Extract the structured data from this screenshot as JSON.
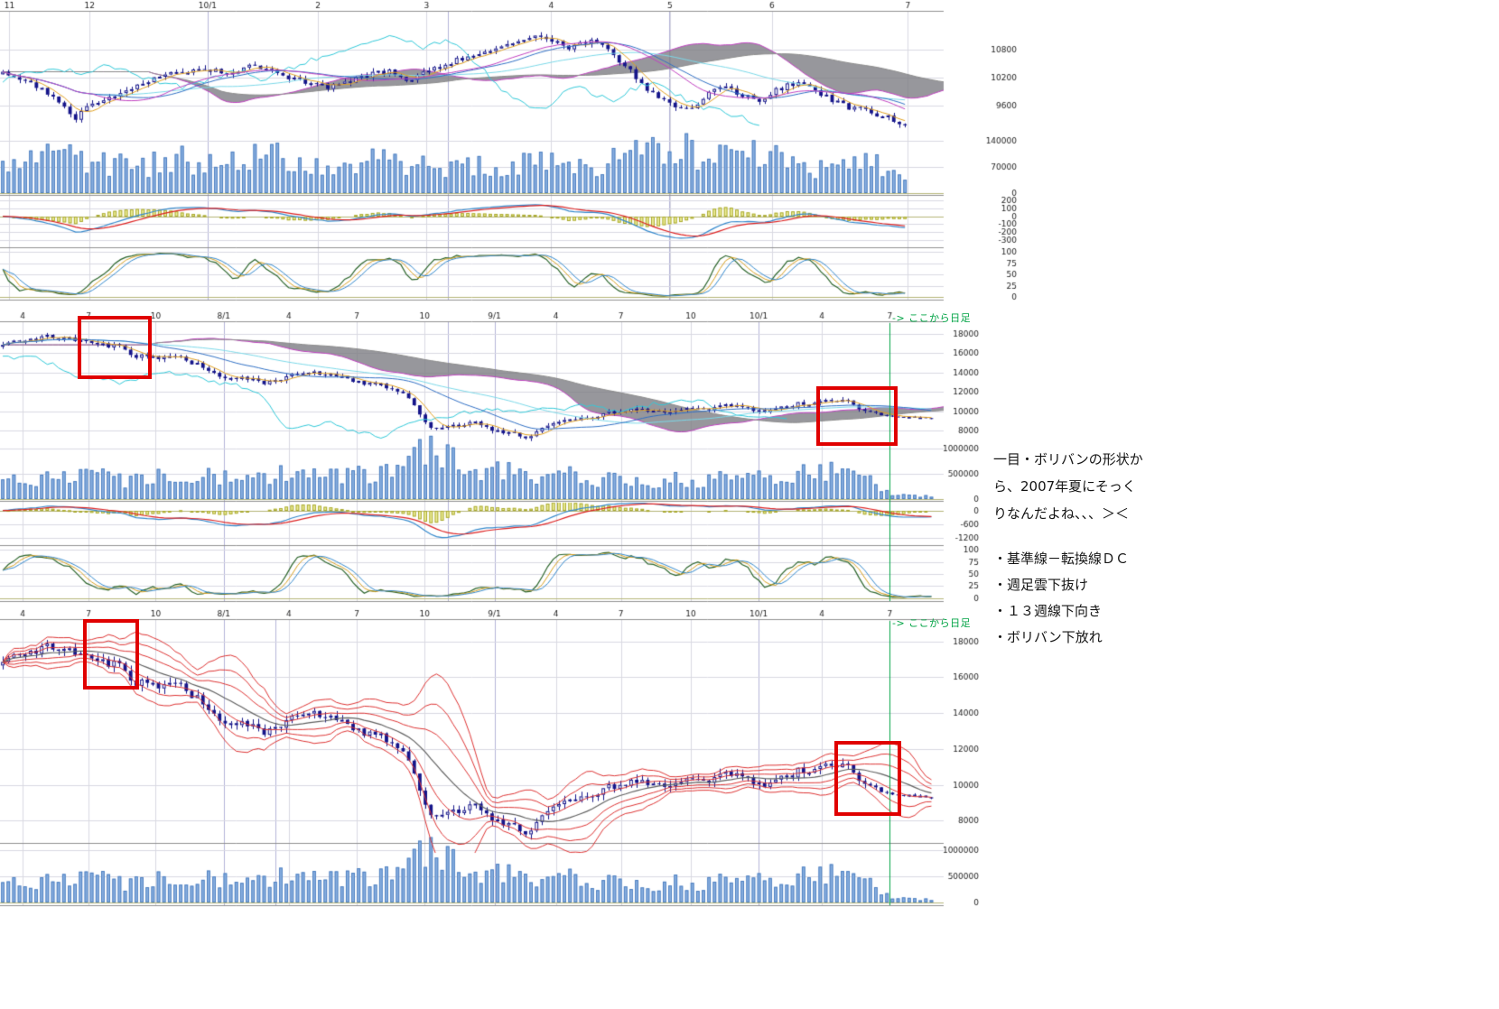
{
  "note": {
    "lines": [
      "一目・ボリバンの形状か",
      "ら、2007年夏にそっく",
      "りなんだよね、、、＞＜"
    ],
    "bullets": [
      "・基準線－転換線ＤＣ",
      "・週足雲下抜け",
      "・１３週線下向き",
      "・ボリバン下放れ"
    ]
  },
  "palette": {
    "candle": "#15158a",
    "volume": "#8ab0e0",
    "volume_edge": "#4d7fc0",
    "cloud": "rgba(122,122,128,0.78)",
    "spanA": "#c040c0",
    "spanB": "#8a8a8a",
    "tenkan": "#e0a020",
    "kijun": "#2f6fc4",
    "chikou": "#30c8d8",
    "cyan2": "#7ad8e8",
    "boll": "#dd3333",
    "boll_mid": "#606060",
    "macd_line": "#3388cc",
    "macd_signal": "#dd2222",
    "hist_fill": "#eeee99",
    "hist_edge": "#a8a830",
    "stoch_k": "#2a642a",
    "stoch_d": "#d8a020",
    "stoch_s": "#3388cc",
    "grid": "#d9d9e2",
    "grid_month": "#b4b4d8",
    "grid_zero": "#b5b577",
    "sep": "#909090",
    "axis_text": "#222222",
    "green": "#00a344",
    "highlight_red": "#e00000"
  },
  "chart_data": [
    {
      "type": "candlestick",
      "timeframe": "daily",
      "overlay": "ichimoku",
      "candles": 162,
      "seed": 3,
      "noise": 120,
      "x_ticks": [
        {
          "label": "11",
          "pos": 0.01
        },
        {
          "label": "12",
          "pos": 0.095
        },
        {
          "label": "10/1",
          "pos": 0.22
        },
        {
          "label": "2",
          "pos": 0.337
        },
        {
          "label": "3",
          "pos": 0.452
        },
        {
          "label": "4",
          "pos": 0.584
        },
        {
          "label": "5",
          "pos": 0.71
        },
        {
          "label": "6",
          "pos": 0.818
        },
        {
          "label": "7",
          "pos": 0.962
        }
      ],
      "extra_vlines": [
        0.475,
        0.709
      ],
      "y_axis": {
        "min": 9000,
        "max": 11600,
        "ticks": [
          10800,
          10200,
          9600
        ]
      },
      "volume_axis": {
        "max": 155000,
        "ticks": [
          140000,
          70000,
          0
        ]
      },
      "macd_axis": {
        "min": -350,
        "max": 250,
        "ticks": [
          200,
          100,
          0,
          -100,
          -200,
          -300
        ]
      },
      "stoch_axis": {
        "ticks": [
          100,
          75,
          50,
          25,
          0
        ]
      },
      "price_keyframes": [
        [
          0,
          10300
        ],
        [
          0.02,
          10150
        ],
        [
          0.05,
          9900
        ],
        [
          0.08,
          9300
        ],
        [
          0.1,
          9650
        ],
        [
          0.13,
          9850
        ],
        [
          0.16,
          10150
        ],
        [
          0.19,
          10300
        ],
        [
          0.22,
          10400
        ],
        [
          0.25,
          10300
        ],
        [
          0.28,
          10450
        ],
        [
          0.31,
          10250
        ],
        [
          0.34,
          10050
        ],
        [
          0.37,
          10000
        ],
        [
          0.4,
          10250
        ],
        [
          0.43,
          10350
        ],
        [
          0.45,
          10150
        ],
        [
          0.47,
          10300
        ],
        [
          0.5,
          10550
        ],
        [
          0.53,
          10750
        ],
        [
          0.56,
          10950
        ],
        [
          0.59,
          11150
        ],
        [
          0.61,
          11000
        ],
        [
          0.63,
          10850
        ],
        [
          0.655,
          11050
        ],
        [
          0.68,
          10650
        ],
        [
          0.7,
          10250
        ],
        [
          0.72,
          9850
        ],
        [
          0.74,
          9600
        ],
        [
          0.76,
          9500
        ],
        [
          0.78,
          9850
        ],
        [
          0.8,
          10000
        ],
        [
          0.82,
          9850
        ],
        [
          0.84,
          9700
        ],
        [
          0.86,
          9950
        ],
        [
          0.88,
          10100
        ],
        [
          0.9,
          9950
        ],
        [
          0.92,
          9700
        ],
        [
          0.94,
          9550
        ],
        [
          0.96,
          9500
        ],
        [
          0.98,
          9350
        ],
        [
          1,
          9200
        ]
      ],
      "volume_keyframes": [
        [
          0,
          70000
        ],
        [
          0.04,
          90000
        ],
        [
          0.07,
          120000
        ],
        [
          0.1,
          80000
        ],
        [
          0.15,
          70000
        ],
        [
          0.2,
          90000
        ],
        [
          0.25,
          80000
        ],
        [
          0.3,
          100000
        ],
        [
          0.33,
          70000
        ],
        [
          0.38,
          62000
        ],
        [
          0.42,
          90000
        ],
        [
          0.46,
          80000
        ],
        [
          0.5,
          70000
        ],
        [
          0.55,
          80000
        ],
        [
          0.6,
          88000
        ],
        [
          0.63,
          70000
        ],
        [
          0.67,
          80000
        ],
        [
          0.7,
          115000
        ],
        [
          0.73,
          130000
        ],
        [
          0.76,
          110000
        ],
        [
          0.8,
          92000
        ],
        [
          0.84,
          100000
        ],
        [
          0.88,
          80000
        ],
        [
          0.92,
          62000
        ],
        [
          0.96,
          88000
        ],
        [
          1,
          50000
        ]
      ]
    },
    {
      "type": "candlestick",
      "timeframe": "weekly",
      "overlay": "ichimoku",
      "candles": 168,
      "seed": 7,
      "noise": 450,
      "taper": 0.943,
      "daily_marker": {
        "pos": 0.943,
        "label": "-> ここから日足"
      },
      "x_ticks": [
        {
          "label": "4",
          "pos": 0.024
        },
        {
          "label": "7",
          "pos": 0.094
        },
        {
          "label": "10",
          "pos": 0.165
        },
        {
          "label": "8/1",
          "pos": 0.237
        },
        {
          "label": "4",
          "pos": 0.306
        },
        {
          "label": "7",
          "pos": 0.378
        },
        {
          "label": "10",
          "pos": 0.45
        },
        {
          "label": "9/1",
          "pos": 0.524
        },
        {
          "label": "4",
          "pos": 0.589
        },
        {
          "label": "7",
          "pos": 0.658
        },
        {
          "label": "10",
          "pos": 0.732
        },
        {
          "label": "10/1",
          "pos": 0.804
        },
        {
          "label": "4",
          "pos": 0.871
        },
        {
          "label": "7",
          "pos": 0.943
        }
      ],
      "extra_vlines": [
        0.475
      ],
      "y_axis": {
        "min": 7000,
        "max": 19100,
        "ticks": [
          18000,
          16000,
          14000,
          12000,
          10000,
          8000
        ]
      },
      "volume_axis": {
        "max": 1100000,
        "ticks": [
          1000000,
          500000,
          0
        ]
      },
      "macd_axis": {
        "min": -1500,
        "max": 350,
        "ticks": [
          0,
          -600,
          -1200
        ]
      },
      "stoch_axis": {
        "ticks": [
          100,
          75,
          50,
          25,
          0
        ]
      },
      "price_keyframes": [
        [
          0,
          17100
        ],
        [
          0.03,
          17300
        ],
        [
          0.055,
          17800
        ],
        [
          0.08,
          17400
        ],
        [
          0.1,
          16700
        ],
        [
          0.12,
          16900
        ],
        [
          0.145,
          15700
        ],
        [
          0.165,
          15400
        ],
        [
          0.19,
          15700
        ],
        [
          0.21,
          14800
        ],
        [
          0.235,
          13600
        ],
        [
          0.26,
          13300
        ],
        [
          0.285,
          12900
        ],
        [
          0.31,
          13600
        ],
        [
          0.335,
          14100
        ],
        [
          0.36,
          13500
        ],
        [
          0.385,
          13000
        ],
        [
          0.41,
          12700
        ],
        [
          0.43,
          12100
        ],
        [
          0.445,
          10600
        ],
        [
          0.455,
          8900
        ],
        [
          0.465,
          7900
        ],
        [
          0.475,
          8700
        ],
        [
          0.49,
          8300
        ],
        [
          0.505,
          9000
        ],
        [
          0.52,
          8400
        ],
        [
          0.535,
          8000
        ],
        [
          0.55,
          7800
        ],
        [
          0.565,
          7300
        ],
        [
          0.58,
          8200
        ],
        [
          0.6,
          8900
        ],
        [
          0.62,
          9300
        ],
        [
          0.64,
          9600
        ],
        [
          0.66,
          9900
        ],
        [
          0.68,
          10200
        ],
        [
          0.7,
          10100
        ],
        [
          0.72,
          9800
        ],
        [
          0.74,
          10300
        ],
        [
          0.76,
          10150
        ],
        [
          0.78,
          10550
        ],
        [
          0.8,
          10300
        ],
        [
          0.82,
          10050
        ],
        [
          0.84,
          10350
        ],
        [
          0.86,
          10800
        ],
        [
          0.88,
          11050
        ],
        [
          0.9,
          11200
        ],
        [
          0.915,
          10750
        ],
        [
          0.93,
          10000
        ],
        [
          0.945,
          9550
        ],
        [
          0.96,
          9450
        ],
        [
          0.98,
          9350
        ],
        [
          1,
          9300
        ]
      ],
      "volume_keyframes": [
        [
          0,
          380000
        ],
        [
          0.05,
          420000
        ],
        [
          0.09,
          520000
        ],
        [
          0.13,
          400000
        ],
        [
          0.17,
          450000
        ],
        [
          0.21,
          500000
        ],
        [
          0.25,
          430000
        ],
        [
          0.3,
          480000
        ],
        [
          0.34,
          420000
        ],
        [
          0.38,
          450000
        ],
        [
          0.42,
          520000
        ],
        [
          0.445,
          780000
        ],
        [
          0.46,
          1050000
        ],
        [
          0.48,
          820000
        ],
        [
          0.5,
          600000
        ],
        [
          0.53,
          520000
        ],
        [
          0.56,
          480000
        ],
        [
          0.6,
          450000
        ],
        [
          0.64,
          430000
        ],
        [
          0.68,
          400000
        ],
        [
          0.72,
          380000
        ],
        [
          0.76,
          400000
        ],
        [
          0.8,
          370000
        ],
        [
          0.84,
          420000
        ],
        [
          0.87,
          650000
        ],
        [
          0.9,
          500000
        ],
        [
          0.93,
          380000
        ],
        [
          0.95,
          150000
        ],
        [
          0.97,
          70000
        ],
        [
          1,
          60000
        ]
      ]
    },
    {
      "type": "candlestick",
      "timeframe": "weekly",
      "overlay": "bollinger",
      "candles": 168,
      "seed": 7,
      "noise": 450,
      "taper": 0.943,
      "daily_marker": {
        "pos": 0.943,
        "label": "-> ここから日足"
      },
      "x_ticks": [
        {
          "label": "4",
          "pos": 0.024
        },
        {
          "label": "7",
          "pos": 0.094
        },
        {
          "label": "10",
          "pos": 0.165
        },
        {
          "label": "8/1",
          "pos": 0.237
        },
        {
          "label": "4",
          "pos": 0.306
        },
        {
          "label": "7",
          "pos": 0.378
        },
        {
          "label": "10",
          "pos": 0.45
        },
        {
          "label": "9/1",
          "pos": 0.524
        },
        {
          "label": "4",
          "pos": 0.589
        },
        {
          "label": "7",
          "pos": 0.658
        },
        {
          "label": "10",
          "pos": 0.732
        },
        {
          "label": "10/1",
          "pos": 0.804
        },
        {
          "label": "4",
          "pos": 0.871
        },
        {
          "label": "7",
          "pos": 0.943
        }
      ],
      "extra_vlines": [
        0.292
      ],
      "y_axis": {
        "min": 6800,
        "max": 19150,
        "ticks": [
          18000,
          16000,
          14000,
          12000,
          10000,
          8000
        ]
      },
      "volume_axis": {
        "max": 1100000,
        "ticks": [
          1000000,
          500000,
          0
        ]
      },
      "price_keyframes": [
        [
          0,
          17100
        ],
        [
          0.03,
          17300
        ],
        [
          0.055,
          17800
        ],
        [
          0.08,
          17400
        ],
        [
          0.1,
          16700
        ],
        [
          0.12,
          16900
        ],
        [
          0.145,
          15700
        ],
        [
          0.165,
          15400
        ],
        [
          0.19,
          15700
        ],
        [
          0.21,
          14800
        ],
        [
          0.235,
          13600
        ],
        [
          0.26,
          13300
        ],
        [
          0.285,
          12900
        ],
        [
          0.31,
          13600
        ],
        [
          0.335,
          14100
        ],
        [
          0.36,
          13500
        ],
        [
          0.385,
          13000
        ],
        [
          0.41,
          12700
        ],
        [
          0.43,
          12100
        ],
        [
          0.445,
          10600
        ],
        [
          0.455,
          8900
        ],
        [
          0.465,
          7900
        ],
        [
          0.475,
          8700
        ],
        [
          0.49,
          8300
        ],
        [
          0.505,
          9000
        ],
        [
          0.52,
          8400
        ],
        [
          0.535,
          8000
        ],
        [
          0.55,
          7800
        ],
        [
          0.565,
          7300
        ],
        [
          0.58,
          8200
        ],
        [
          0.6,
          8900
        ],
        [
          0.62,
          9300
        ],
        [
          0.64,
          9600
        ],
        [
          0.66,
          9900
        ],
        [
          0.68,
          10200
        ],
        [
          0.7,
          10100
        ],
        [
          0.72,
          9800
        ],
        [
          0.74,
          10300
        ],
        [
          0.76,
          10150
        ],
        [
          0.78,
          10550
        ],
        [
          0.8,
          10300
        ],
        [
          0.82,
          10050
        ],
        [
          0.84,
          10350
        ],
        [
          0.86,
          10800
        ],
        [
          0.88,
          11050
        ],
        [
          0.9,
          11200
        ],
        [
          0.915,
          10750
        ],
        [
          0.93,
          10000
        ],
        [
          0.945,
          9550
        ],
        [
          0.96,
          9450
        ],
        [
          0.98,
          9350
        ],
        [
          1,
          9300
        ]
      ],
      "volume_keyframes": [
        [
          0,
          380000
        ],
        [
          0.05,
          420000
        ],
        [
          0.09,
          520000
        ],
        [
          0.13,
          400000
        ],
        [
          0.17,
          450000
        ],
        [
          0.21,
          500000
        ],
        [
          0.25,
          430000
        ],
        [
          0.3,
          480000
        ],
        [
          0.34,
          420000
        ],
        [
          0.38,
          450000
        ],
        [
          0.42,
          520000
        ],
        [
          0.445,
          780000
        ],
        [
          0.46,
          1050000
        ],
        [
          0.48,
          820000
        ],
        [
          0.5,
          600000
        ],
        [
          0.53,
          520000
        ],
        [
          0.56,
          480000
        ],
        [
          0.6,
          450000
        ],
        [
          0.64,
          430000
        ],
        [
          0.68,
          400000
        ],
        [
          0.72,
          380000
        ],
        [
          0.76,
          400000
        ],
        [
          0.8,
          370000
        ],
        [
          0.84,
          420000
        ],
        [
          0.87,
          650000
        ],
        [
          0.9,
          500000
        ],
        [
          0.93,
          380000
        ],
        [
          0.95,
          150000
        ],
        [
          0.97,
          70000
        ],
        [
          1,
          60000
        ]
      ]
    }
  ]
}
